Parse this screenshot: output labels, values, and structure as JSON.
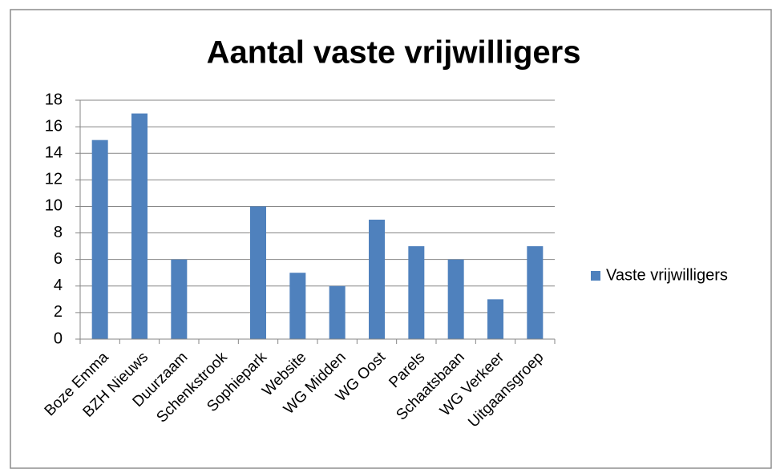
{
  "chart_data": {
    "type": "bar",
    "title": "Aantal vaste vrijwilligers",
    "categories": [
      "Boze Emma",
      "BZH Nieuws",
      "Duurzaam",
      "Schenkstrook",
      "Sophiepark",
      "Website",
      "WG Midden",
      "WG Oost",
      "Parels",
      "Schaatsbaan",
      "WG Verkeer",
      "Uitgaansgroep"
    ],
    "series": [
      {
        "name": "Vaste vrijwilligers",
        "color": "#4f81bd",
        "values": [
          15,
          17,
          6,
          0,
          10,
          5,
          4,
          9,
          7,
          6,
          3,
          7
        ]
      }
    ],
    "ylim": [
      0,
      18
    ],
    "yticks": [
      0,
      2,
      4,
      6,
      8,
      10,
      12,
      14,
      16,
      18
    ],
    "grid": true,
    "legend": "right"
  }
}
